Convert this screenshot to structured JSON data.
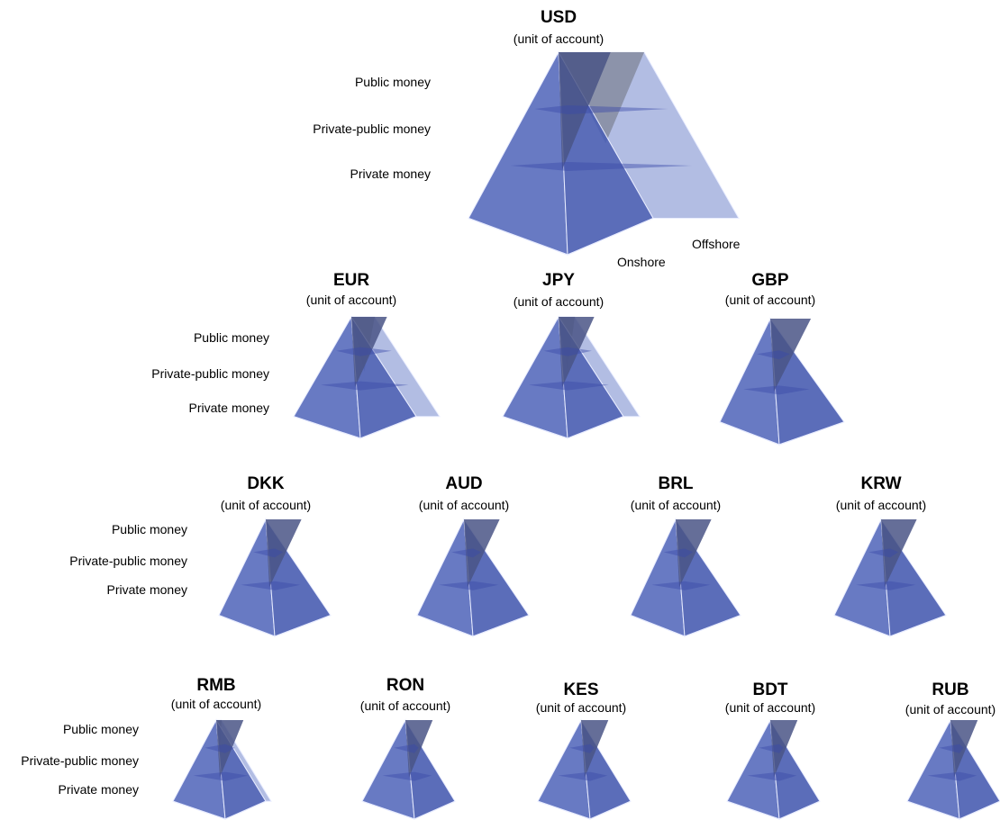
{
  "colors": {
    "front": "#5b6fbe",
    "front_dark": "#4d61b3",
    "back_face": "#aab6e0",
    "public_wedge": "#4a5586",
    "offshore_wedge": "#8a90a6",
    "band": "#3949a8",
    "edge": "#e8ecff"
  },
  "currencies": [
    {
      "code": "USD",
      "unit": "(unit of account)",
      "offshore_share": 0.5,
      "levels": [
        "Public money",
        "Private-public money",
        "Private money"
      ],
      "sides": [
        "Onshore",
        "Offshore"
      ]
    },
    {
      "code": "EUR",
      "unit": "(unit of account)",
      "offshore_share": 0.27,
      "levels": [
        "Public money",
        "Private-public money",
        "Private money"
      ]
    },
    {
      "code": "JPY",
      "unit": "(unit of account)",
      "offshore_share": 0.14,
      "levels": []
    },
    {
      "code": "GBP",
      "unit": "(unit of account)",
      "offshore_share": 0,
      "levels": []
    },
    {
      "code": "DKK",
      "unit": "(unit of account)",
      "offshore_share": 0,
      "levels": [
        "Public money",
        "Private-public money",
        "Private money"
      ]
    },
    {
      "code": "AUD",
      "unit": "(unit of account)",
      "offshore_share": 0,
      "levels": []
    },
    {
      "code": "BRL",
      "unit": "(unit of account)",
      "offshore_share": 0,
      "levels": []
    },
    {
      "code": "KRW",
      "unit": "(unit of account)",
      "offshore_share": 0,
      "levels": []
    },
    {
      "code": "RMB",
      "unit": "(unit of account)",
      "offshore_share": 0.06,
      "levels": [
        "Public money",
        "Private-public money",
        "Private money"
      ]
    },
    {
      "code": "RON",
      "unit": "(unit of account)",
      "offshore_share": 0,
      "levels": []
    },
    {
      "code": "KES",
      "unit": "(unit of account)",
      "offshore_share": 0,
      "levels": []
    },
    {
      "code": "BDT",
      "unit": "(unit of account)",
      "offshore_share": 0,
      "levels": []
    },
    {
      "code": "RUB",
      "unit": "(unit of account)",
      "offshore_share": 0,
      "levels": []
    }
  ]
}
